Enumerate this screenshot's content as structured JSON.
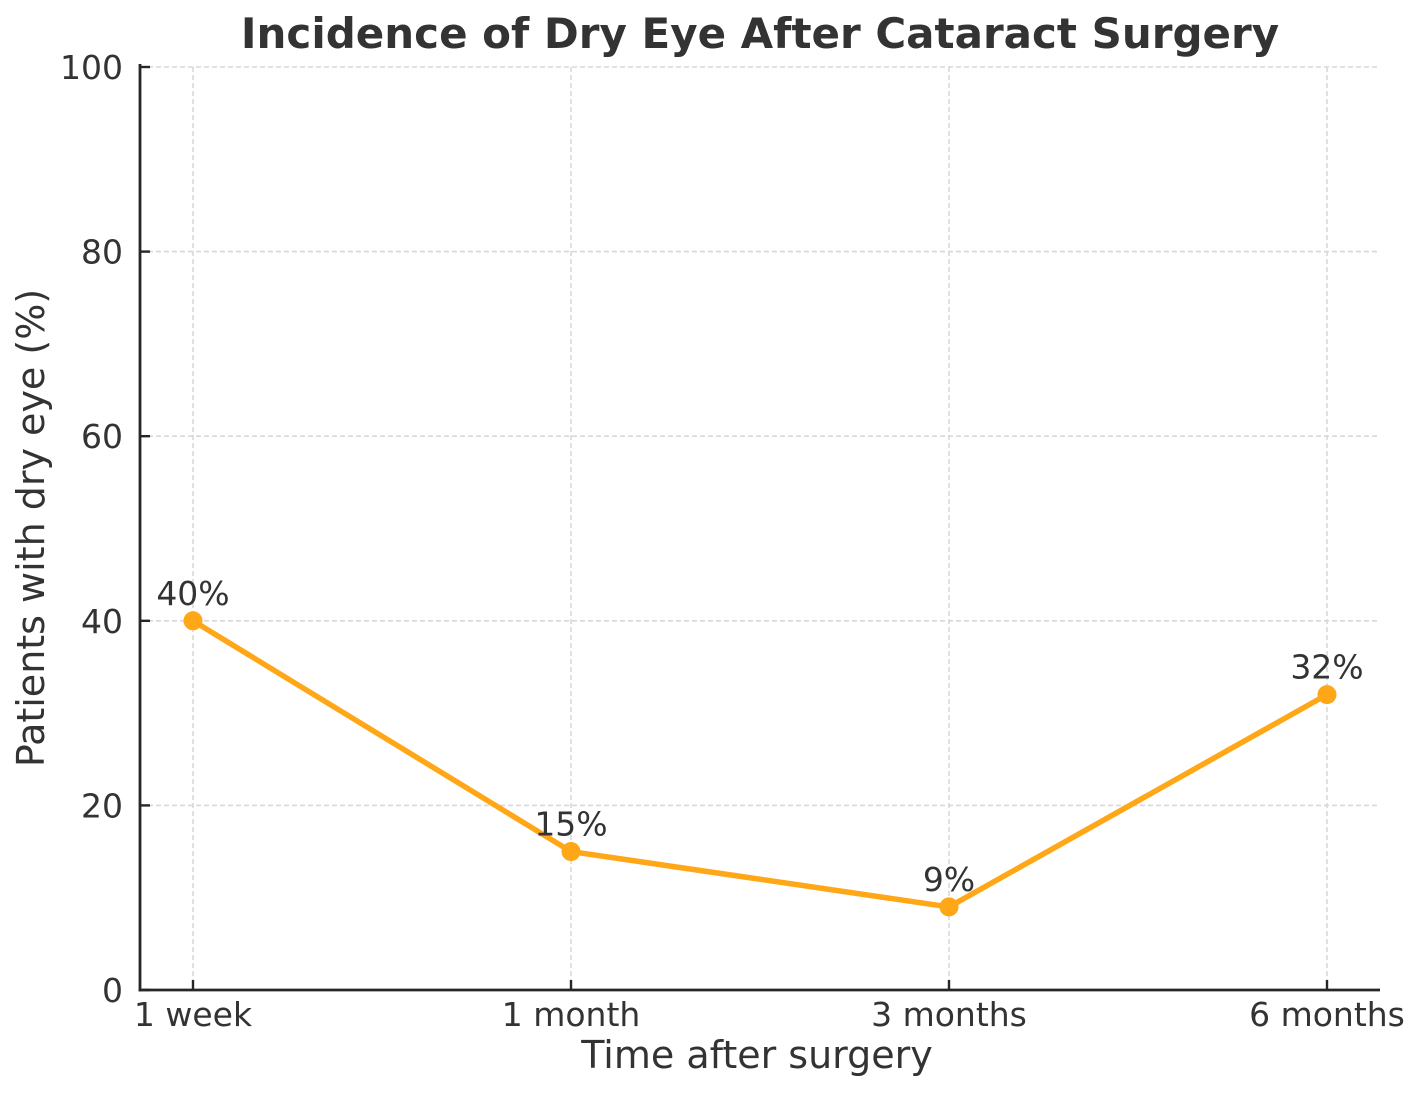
{
  "chart_data": {
    "type": "line",
    "title": "Incidence of Dry Eye After Cataract Surgery",
    "xlabel": "Time after surgery",
    "ylabel": "Patients with dry eye (%)",
    "categories": [
      "1 week",
      "1 month",
      "3 months",
      "6 months"
    ],
    "series": [
      {
        "name": "Patients with dry eye",
        "values": [
          40,
          15,
          9,
          32
        ],
        "point_labels": [
          "40%",
          "15%",
          "9%",
          "32%"
        ]
      }
    ],
    "ylim": [
      0,
      100
    ],
    "yticks": [
      0,
      20,
      40,
      60,
      80,
      100
    ],
    "grid": true,
    "grid_style": "dashed",
    "legend_position": "none",
    "colors": {
      "line": "#FFA716",
      "marker": "#FFA716",
      "grid": "#D8D8D8",
      "axis": "#262626",
      "text": "#333333",
      "background": "#FFFFFF"
    }
  }
}
